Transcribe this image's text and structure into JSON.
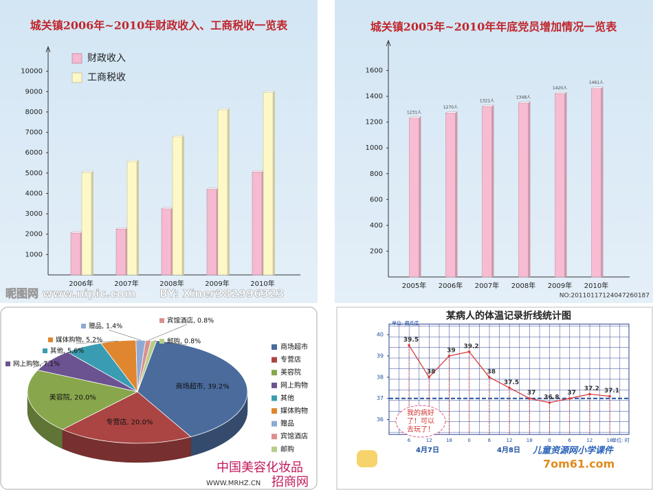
{
  "chart_data": [
    {
      "type": "bar",
      "title": "城关镇2006年~2010年财政收入、工商税收一览表",
      "categories": [
        "2006年",
        "2007年",
        "2008年",
        "2009年",
        "2010年"
      ],
      "series": [
        {
          "name": "财政收入",
          "color": "#f5b9d0",
          "values": [
            2058,
            2247,
            3247,
            4200,
            5050
          ]
        },
        {
          "name": "工商税收",
          "color": "#fdf8c6",
          "values": [
            5030,
            5560,
            6780,
            8100,
            8960
          ]
        }
      ],
      "ylim": [
        0,
        11000
      ],
      "yticks": [
        1000,
        2000,
        3000,
        4000,
        5000,
        6000,
        7000,
        8000,
        9000,
        10000
      ],
      "grid": false
    },
    {
      "type": "bar",
      "title": "城关镇2005年~2010年年底党员增加情况一览表",
      "categories": [
        "2005年",
        "2006年",
        "2007年",
        "2008年",
        "2009年",
        "2010年"
      ],
      "values": [
        1231,
        1270,
        1321,
        1348,
        1420,
        1461
      ],
      "value_labels": [
        "1231人",
        "1270人",
        "1321人",
        "1348人",
        "1420人",
        "1461人"
      ],
      "color": "#f7bcd2",
      "ylim": [
        0,
        1800
      ],
      "yticks": [
        200,
        400,
        600,
        800,
        1000,
        1200,
        1400,
        1600
      ],
      "grid": false
    },
    {
      "type": "pie",
      "categories": [
        "商场超市",
        "专营店",
        "美容院",
        "网上购物",
        "其他",
        "媒体购物",
        "赠品",
        "宾馆酒店",
        "邮购"
      ],
      "values": [
        39.2,
        20.0,
        20.0,
        7.1,
        5.6,
        5.2,
        1.4,
        0.8,
        0.8
      ],
      "value_labels": [
        "商场超市, 39.2%",
        "专营店, 20.0%",
        "美容院, 20.0%",
        "网上购物, 7.1%",
        "其他, 5.6%",
        "媒体购物, 5.2%",
        "赠品, 1.4%",
        "宾馆酒店, 0.8%",
        "邮购, 0.8%"
      ],
      "colors": [
        "#4a6b9c",
        "#aa4543",
        "#88a64c",
        "#6b5290",
        "#3a9cb2",
        "#e0862f",
        "#8ea9d2",
        "#d9908d",
        "#b7cd8c"
      ]
    },
    {
      "type": "line",
      "title": "某病人的体温记录折线统计图",
      "y_unit": "单位: 摄氏度",
      "x_unit": "单位: 时",
      "x_groups": [
        "4月7日",
        "4月8日"
      ],
      "categories": [
        "6",
        "12",
        "18",
        "0",
        "6",
        "12",
        "18",
        "0",
        "6",
        "12",
        "18"
      ],
      "values": [
        39.5,
        38,
        39,
        39.2,
        38,
        37.5,
        37,
        36.8,
        37,
        37.2,
        37.1
      ],
      "color": "#d93b3b",
      "reference_line": 37,
      "annotation_lines": [
        "我的病好",
        "了！可以",
        "去玩了！"
      ],
      "ylim": [
        35.3,
        40.5
      ],
      "yticks": [
        36,
        37,
        38,
        39,
        40
      ],
      "grid": true
    }
  ],
  "watermarks": {
    "nipic": "昵图网 www.nipic.com",
    "author": "BY: Xiner382996323",
    "number": "NO:20110117124047260187",
    "logo_top": "中国美容化妆品",
    "logo_bottom": "招商网",
    "logo_url": "WWW.MRHZ.CN",
    "kids_site": "儿童资源网小学课件",
    "kids_url": "7om61.com"
  }
}
